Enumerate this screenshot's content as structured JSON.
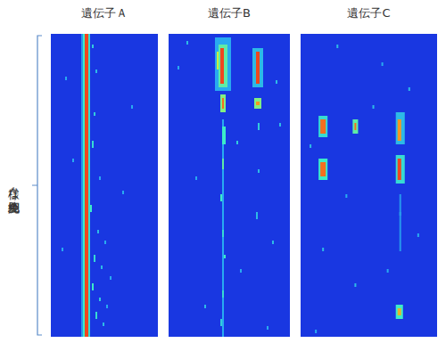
{
  "chart_data": {
    "type": "heatmap",
    "ylabel": "様々な免疫細胞",
    "zlim": [
      0,
      1
    ],
    "tick_labels": false,
    "panels": [
      {
        "title": "遺伝子Ａ",
        "rows": 85,
        "cols": 60,
        "cells": [
          [
            0,
            84,
            19,
            20,
            0.95
          ],
          [
            0,
            84,
            18,
            18,
            0.5
          ],
          [
            0,
            84,
            21,
            21,
            0.45
          ],
          [
            0,
            84,
            17,
            17,
            0.25
          ],
          [
            3,
            3,
            23,
            23,
            0.4
          ],
          [
            10,
            10,
            25,
            25,
            0.35
          ],
          [
            22,
            22,
            24,
            24,
            0.4
          ],
          [
            30,
            31,
            23,
            23,
            0.45
          ],
          [
            40,
            40,
            27,
            27,
            0.3
          ],
          [
            48,
            49,
            22,
            22,
            0.5
          ],
          [
            55,
            55,
            26,
            26,
            0.35
          ],
          [
            58,
            58,
            30,
            30,
            0.3
          ],
          [
            62,
            63,
            24,
            24,
            0.45
          ],
          [
            65,
            65,
            28,
            28,
            0.35
          ],
          [
            68,
            68,
            33,
            33,
            0.3
          ],
          [
            70,
            71,
            23,
            23,
            0.5
          ],
          [
            74,
            74,
            27,
            27,
            0.4
          ],
          [
            76,
            76,
            31,
            31,
            0.3
          ],
          [
            78,
            79,
            25,
            25,
            0.45
          ],
          [
            81,
            81,
            29,
            29,
            0.35
          ],
          [
            12,
            12,
            8,
            8,
            0.3
          ],
          [
            35,
            35,
            12,
            12,
            0.3
          ],
          [
            60,
            60,
            6,
            6,
            0.3
          ],
          [
            44,
            44,
            40,
            40,
            0.3
          ],
          [
            20,
            20,
            45,
            45,
            0.3
          ]
        ]
      },
      {
        "title": "遺伝子B",
        "rows": 85,
        "cols": 68,
        "cells": [
          [
            1,
            15,
            26,
            34,
            0.3
          ],
          [
            3,
            14,
            28,
            32,
            0.55
          ],
          [
            4,
            13,
            29,
            30,
            0.95
          ],
          [
            5,
            9,
            27,
            27,
            0.7
          ],
          [
            17,
            21,
            29,
            31,
            0.6
          ],
          [
            18,
            20,
            30,
            30,
            0.9
          ],
          [
            4,
            14,
            47,
            52,
            0.35
          ],
          [
            5,
            13,
            49,
            50,
            0.95
          ],
          [
            18,
            20,
            48,
            51,
            0.6
          ],
          [
            19,
            19,
            49,
            50,
            0.85
          ],
          [
            24,
            84,
            30,
            30,
            0.3
          ],
          [
            26,
            30,
            30,
            31,
            0.5
          ],
          [
            35,
            37,
            30,
            30,
            0.55
          ],
          [
            45,
            46,
            29,
            29,
            0.5
          ],
          [
            55,
            56,
            30,
            30,
            0.45
          ],
          [
            62,
            62,
            31,
            31,
            0.5
          ],
          [
            72,
            73,
            30,
            30,
            0.45
          ],
          [
            80,
            81,
            29,
            29,
            0.4
          ],
          [
            25,
            26,
            50,
            50,
            0.4
          ],
          [
            38,
            38,
            50,
            50,
            0.35
          ],
          [
            50,
            51,
            49,
            49,
            0.35
          ],
          [
            2,
            2,
            10,
            10,
            0.35
          ],
          [
            9,
            9,
            5,
            5,
            0.3
          ],
          [
            25,
            25,
            62,
            62,
            0.35
          ],
          [
            40,
            40,
            15,
            15,
            0.3
          ],
          [
            58,
            58,
            58,
            58,
            0.35
          ],
          [
            66,
            66,
            40,
            40,
            0.3
          ],
          [
            76,
            76,
            20,
            20,
            0.35
          ],
          [
            82,
            82,
            55,
            55,
            0.3
          ],
          [
            30,
            30,
            38,
            38,
            0.4
          ],
          [
            13,
            13,
            60,
            60,
            0.35
          ]
        ]
      },
      {
        "title": "遺伝子C",
        "rows": 85,
        "cols": 76,
        "cells": [
          [
            23,
            28,
            10,
            14,
            0.45
          ],
          [
            24,
            27,
            11,
            13,
            0.9
          ],
          [
            35,
            40,
            10,
            14,
            0.5
          ],
          [
            36,
            39,
            11,
            13,
            0.9
          ],
          [
            24,
            27,
            29,
            31,
            0.55
          ],
          [
            25,
            26,
            30,
            30,
            0.9
          ],
          [
            22,
            30,
            53,
            57,
            0.35
          ],
          [
            24,
            29,
            54,
            55,
            0.85
          ],
          [
            34,
            41,
            53,
            57,
            0.45
          ],
          [
            35,
            40,
            54,
            55,
            0.95
          ],
          [
            76,
            79,
            53,
            56,
            0.5
          ],
          [
            77,
            78,
            54,
            55,
            0.8
          ],
          [
            3,
            3,
            20,
            20,
            0.35
          ],
          [
            8,
            8,
            45,
            45,
            0.3
          ],
          [
            15,
            15,
            60,
            60,
            0.35
          ],
          [
            20,
            20,
            40,
            40,
            0.35
          ],
          [
            31,
            31,
            5,
            5,
            0.35
          ],
          [
            45,
            45,
            25,
            25,
            0.3
          ],
          [
            50,
            50,
            55,
            55,
            0.4
          ],
          [
            56,
            56,
            65,
            65,
            0.3
          ],
          [
            60,
            60,
            12,
            12,
            0.35
          ],
          [
            66,
            66,
            48,
            48,
            0.3
          ],
          [
            70,
            70,
            30,
            30,
            0.35
          ],
          [
            83,
            83,
            8,
            8,
            0.3
          ],
          [
            45,
            60,
            55,
            55,
            0.25
          ]
        ]
      }
    ]
  }
}
